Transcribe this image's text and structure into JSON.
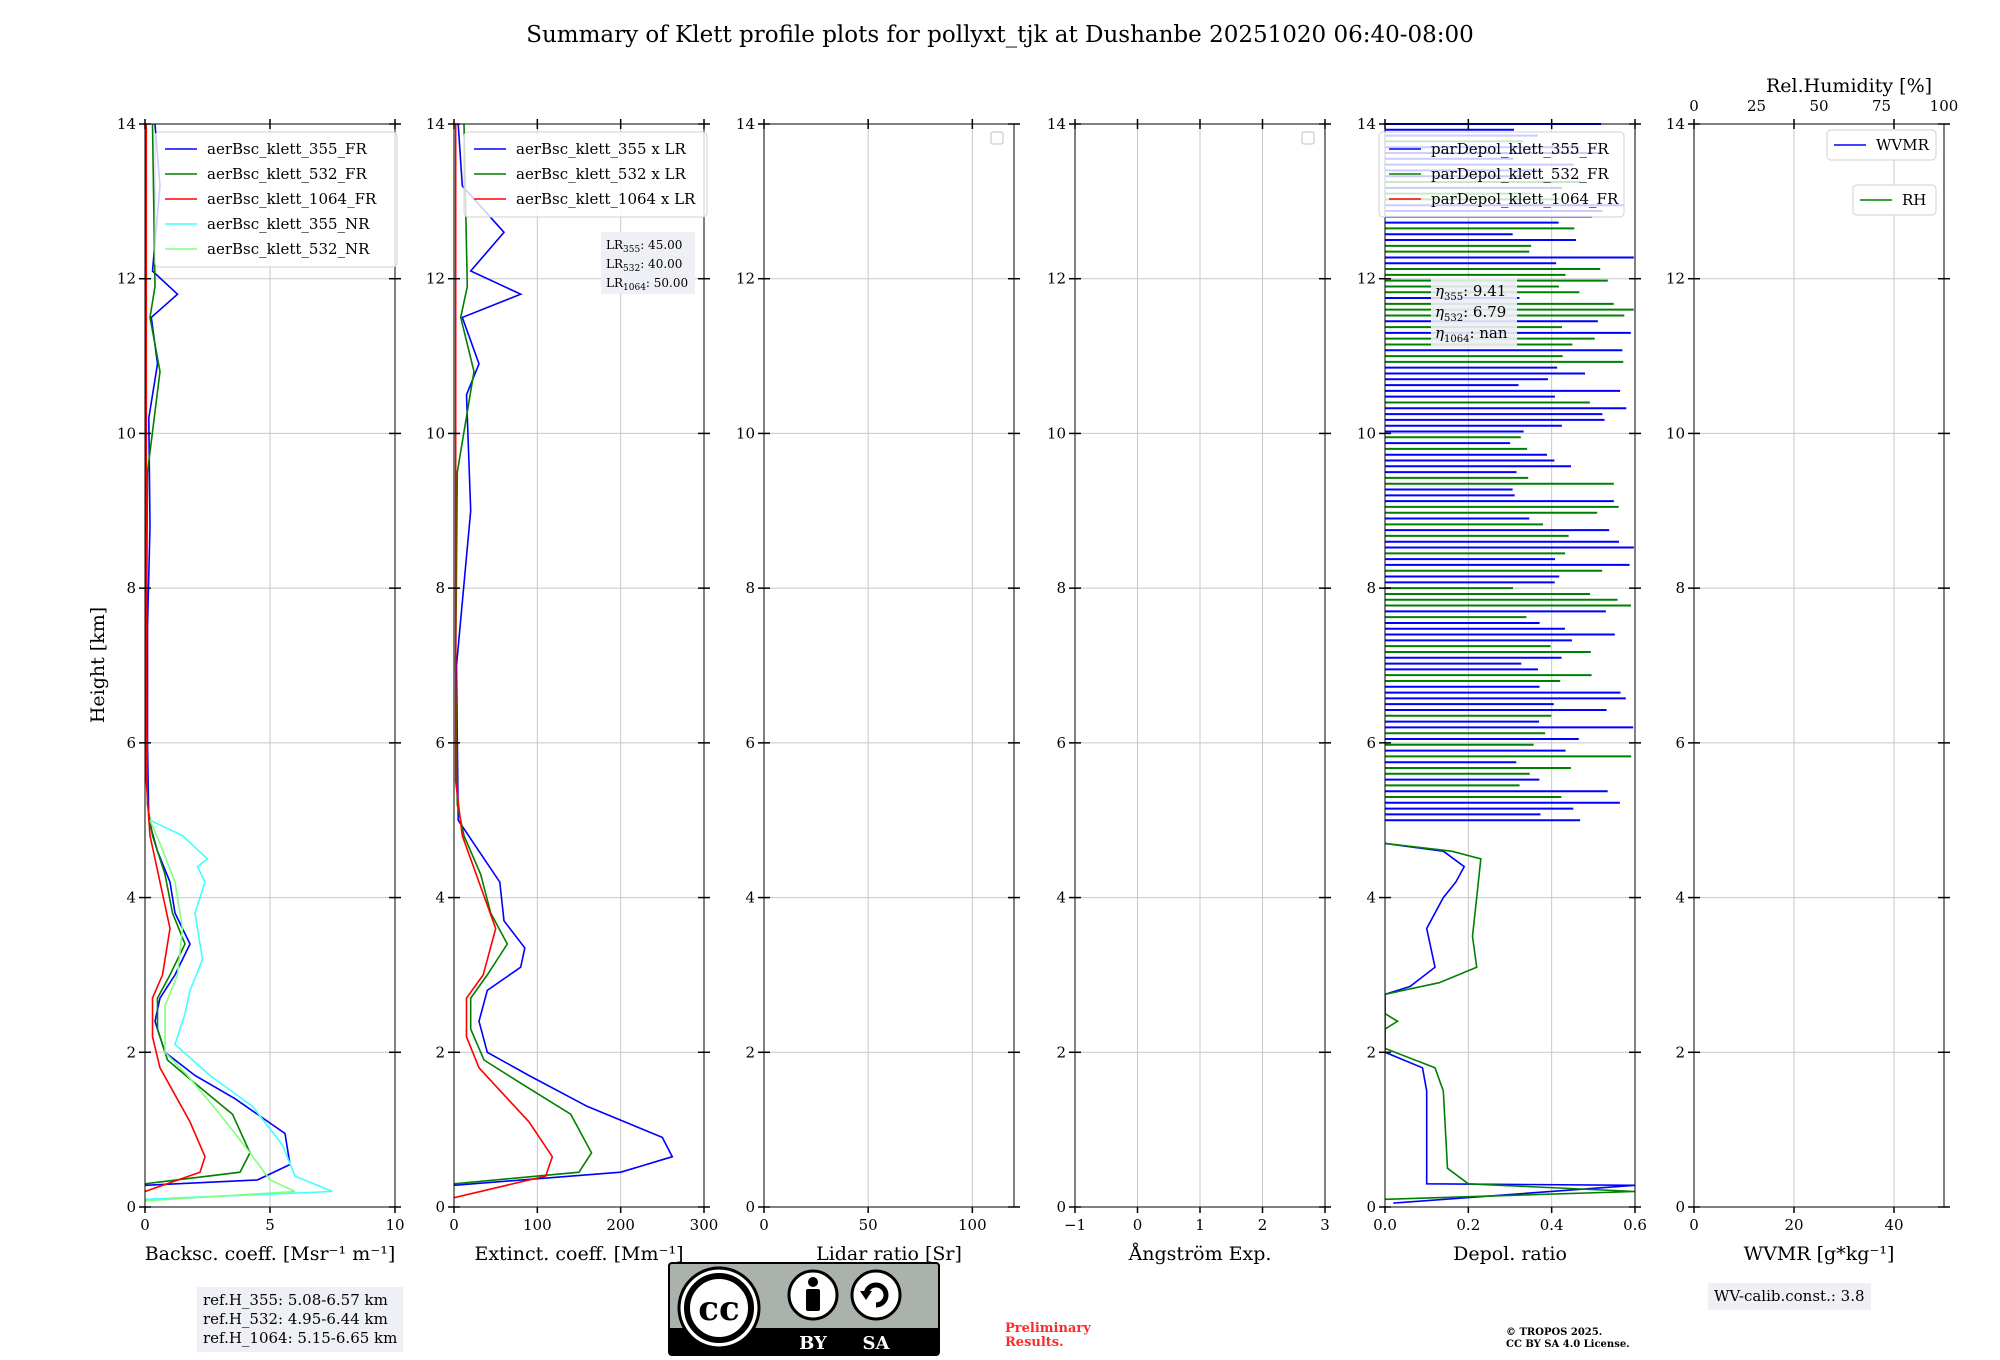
{
  "title": "Summary of Klett profile plots for pollyxt_tjk at Dushanbe 20251020 06:40-08:00",
  "ylabel": "Height [km]",
  "colors": {
    "blue": "#0000ff",
    "green": "#008000",
    "red": "#ff0000",
    "cyan": "#40ffff",
    "lightgreen": "#80ff80",
    "grid": "#c8c8c8"
  },
  "chart_data": [
    {
      "id": "backscatter",
      "type": "line",
      "xlabel": "Backsc. coeff. [Msr⁻¹ m⁻¹]",
      "xlim": [
        0,
        10
      ],
      "ylim": [
        0,
        14
      ],
      "xticks": [
        "0",
        "5",
        "10"
      ],
      "yticks": [
        "0",
        "2",
        "4",
        "6",
        "8",
        "10",
        "12",
        "14"
      ],
      "legend": [
        "aerBsc_klett_355_FR",
        "aerBsc_klett_532_FR",
        "aerBsc_klett_1064_FR",
        "aerBsc_klett_355_NR",
        "aerBsc_klett_532_NR"
      ],
      "series": [
        {
          "name": "aerBsc_klett_355_FR",
          "color": "#0000ff",
          "points": [
            [
              0,
              0.28
            ],
            [
              4.5,
              0.35
            ],
            [
              5.8,
              0.55
            ],
            [
              5.6,
              0.95
            ],
            [
              3.6,
              1.4
            ],
            [
              2.0,
              1.7
            ],
            [
              0.8,
              2.0
            ],
            [
              0.4,
              2.4
            ],
            [
              0.6,
              2.7
            ],
            [
              1.2,
              3.0
            ],
            [
              1.8,
              3.4
            ],
            [
              1.2,
              3.8
            ],
            [
              1.0,
              4.2
            ],
            [
              0.5,
              4.6
            ],
            [
              0.15,
              5.0
            ],
            [
              0.1,
              6.0
            ],
            [
              0.1,
              7.5
            ],
            [
              0.2,
              8.8
            ],
            [
              0.15,
              10.2
            ],
            [
              0.5,
              10.9
            ],
            [
              0.25,
              11.5
            ],
            [
              1.3,
              11.8
            ],
            [
              0.3,
              12.1
            ],
            [
              0.6,
              13.2
            ],
            [
              0.4,
              14.0
            ]
          ]
        },
        {
          "name": "aerBsc_klett_532_FR",
          "color": "#008000",
          "points": [
            [
              0,
              0.3
            ],
            [
              3.8,
              0.45
            ],
            [
              4.2,
              0.7
            ],
            [
              3.5,
              1.2
            ],
            [
              2.0,
              1.6
            ],
            [
              0.9,
              1.9
            ],
            [
              0.5,
              2.3
            ],
            [
              0.5,
              2.7
            ],
            [
              1.0,
              3.0
            ],
            [
              1.6,
              3.4
            ],
            [
              1.1,
              3.8
            ],
            [
              0.8,
              4.3
            ],
            [
              0.3,
              4.8
            ],
            [
              0.1,
              5.2
            ],
            [
              0.05,
              7.0
            ],
            [
              0.1,
              9.5
            ],
            [
              0.6,
              10.8
            ],
            [
              0.2,
              11.5
            ],
            [
              0.4,
              11.9
            ],
            [
              0.3,
              14.0
            ]
          ]
        },
        {
          "name": "aerBsc_klett_1064_FR",
          "color": "#ff0000",
          "points": [
            [
              0,
              0.2
            ],
            [
              2.2,
              0.45
            ],
            [
              2.4,
              0.65
            ],
            [
              1.8,
              1.1
            ],
            [
              0.6,
              1.8
            ],
            [
              0.3,
              2.2
            ],
            [
              0.3,
              2.7
            ],
            [
              0.7,
              3.0
            ],
            [
              1.0,
              3.6
            ],
            [
              0.6,
              4.2
            ],
            [
              0.2,
              4.8
            ],
            [
              0.05,
              5.5
            ],
            [
              0.05,
              14.0
            ]
          ]
        },
        {
          "name": "aerBsc_klett_355_NR",
          "color": "#40ffff",
          "points": [
            [
              0,
              0.1
            ],
            [
              7.5,
              0.2
            ],
            [
              6.0,
              0.4
            ],
            [
              5.5,
              0.8
            ],
            [
              4.3,
              1.3
            ],
            [
              2.6,
              1.7
            ],
            [
              1.2,
              2.1
            ],
            [
              1.6,
              2.5
            ],
            [
              1.8,
              2.8
            ],
            [
              2.3,
              3.2
            ],
            [
              2.0,
              3.8
            ],
            [
              2.4,
              4.2
            ],
            [
              2.1,
              4.4
            ],
            [
              2.5,
              4.5
            ],
            [
              1.5,
              4.8
            ],
            [
              0.2,
              5.0
            ]
          ]
        },
        {
          "name": "aerBsc_klett_532_NR",
          "color": "#80ff80",
          "points": [
            [
              0,
              0.08
            ],
            [
              6.0,
              0.2
            ],
            [
              5.0,
              0.35
            ],
            [
              4.2,
              0.7
            ],
            [
              3.0,
              1.2
            ],
            [
              1.7,
              1.7
            ],
            [
              0.8,
              2.0
            ],
            [
              0.8,
              2.6
            ],
            [
              1.3,
              3.0
            ],
            [
              1.5,
              3.6
            ],
            [
              1.2,
              4.2
            ],
            [
              0.6,
              4.7
            ],
            [
              0.2,
              5.0
            ]
          ]
        }
      ],
      "info": [
        "ref.H_355: 5.08-6.57 km",
        "ref.H_532: 4.95-6.44 km",
        "ref.H_1064: 5.15-6.65 km"
      ]
    },
    {
      "id": "extinction",
      "type": "line",
      "xlabel": "Extinct. coeff. [Mm⁻¹]",
      "xlim": [
        0,
        300
      ],
      "ylim": [
        0,
        14
      ],
      "xticks": [
        "0",
        "100",
        "200",
        "300"
      ],
      "yticks": [
        "0",
        "2",
        "4",
        "6",
        "8",
        "10",
        "12",
        "14"
      ],
      "legend": [
        "aerBsc_klett_355 x LR",
        "aerBsc_klett_532 x LR",
        "aerBsc_klett_1064 x LR"
      ],
      "series": [
        {
          "name": "aerBsc_klett_355 x LR",
          "color": "#0000ff",
          "points": [
            [
              0,
              0.28
            ],
            [
              200,
              0.45
            ],
            [
              262,
              0.65
            ],
            [
              250,
              0.9
            ],
            [
              160,
              1.3
            ],
            [
              90,
              1.7
            ],
            [
              40,
              2.0
            ],
            [
              30,
              2.4
            ],
            [
              40,
              2.8
            ],
            [
              80,
              3.1
            ],
            [
              85,
              3.35
            ],
            [
              60,
              3.7
            ],
            [
              55,
              4.2
            ],
            [
              30,
              4.6
            ],
            [
              5,
              5.0
            ],
            [
              3,
              7.0
            ],
            [
              20,
              9.0
            ],
            [
              15,
              10.5
            ],
            [
              30,
              10.9
            ],
            [
              10,
              11.5
            ],
            [
              80,
              11.8
            ],
            [
              20,
              12.1
            ],
            [
              60,
              12.6
            ],
            [
              10,
              13.2
            ],
            [
              5,
              14.0
            ]
          ]
        },
        {
          "name": "aerBsc_klett_532 x LR",
          "color": "#008000",
          "points": [
            [
              0,
              0.3
            ],
            [
              150,
              0.45
            ],
            [
              165,
              0.7
            ],
            [
              140,
              1.2
            ],
            [
              80,
              1.6
            ],
            [
              36,
              1.9
            ],
            [
              20,
              2.3
            ],
            [
              20,
              2.7
            ],
            [
              40,
              3.0
            ],
            [
              64,
              3.4
            ],
            [
              44,
              3.8
            ],
            [
              32,
              4.3
            ],
            [
              12,
              4.8
            ],
            [
              4,
              5.2
            ],
            [
              2,
              7.0
            ],
            [
              4,
              9.5
            ],
            [
              24,
              10.8
            ],
            [
              8,
              11.5
            ],
            [
              16,
              11.9
            ],
            [
              12,
              14.0
            ]
          ]
        },
        {
          "name": "aerBsc_klett_1064 x LR",
          "color": "#ff0000",
          "points": [
            [
              0,
              0.12
            ],
            [
              110,
              0.4
            ],
            [
              118,
              0.65
            ],
            [
              90,
              1.1
            ],
            [
              30,
              1.8
            ],
            [
              15,
              2.2
            ],
            [
              15,
              2.7
            ],
            [
              35,
              3.0
            ],
            [
              50,
              3.6
            ],
            [
              30,
              4.2
            ],
            [
              10,
              4.8
            ],
            [
              2,
              5.5
            ],
            [
              2,
              14.0
            ]
          ]
        }
      ],
      "info": [
        "LR355: 45.00",
        "LR532: 40.00",
        "LR1064: 50.00"
      ]
    },
    {
      "id": "lidar-ratio",
      "type": "line",
      "xlabel": "Lidar ratio [Sr]",
      "xlim": [
        0,
        120
      ],
      "ylim": [
        0,
        14
      ],
      "xticks": [
        "0",
        "50",
        "100"
      ],
      "yticks": [
        "0",
        "2",
        "4",
        "6",
        "8",
        "10",
        "12",
        "14"
      ],
      "series": []
    },
    {
      "id": "angstrom",
      "type": "line",
      "xlabel": "Ångström Exp.",
      "xlim": [
        -1,
        3
      ],
      "ylim": [
        0,
        14
      ],
      "xticks": [
        "−1",
        "0",
        "1",
        "2",
        "3"
      ],
      "yticks": [
        "0",
        "2",
        "4",
        "6",
        "8",
        "10",
        "12",
        "14"
      ],
      "series": []
    },
    {
      "id": "depol",
      "type": "line",
      "xlabel": "Depol. ratio",
      "xlim": [
        0,
        0.6
      ],
      "ylim": [
        0,
        14
      ],
      "xticks": [
        "0.0",
        "0.2",
        "0.4",
        "0.6"
      ],
      "yticks": [
        "0",
        "2",
        "4",
        "6",
        "8",
        "10",
        "12",
        "14"
      ],
      "legend": [
        "parDepol_klett_355_FR",
        "parDepol_klett_532_FR",
        "parDepol_klett_1064_FR"
      ],
      "series": [
        {
          "name": "parDepol_klett_355_FR",
          "color": "#0000ff",
          "points": [
            [
              0.02,
              0.05
            ],
            [
              0.6,
              0.28
            ],
            [
              0.1,
              0.3
            ],
            [
              0.1,
              1.5
            ],
            [
              0.09,
              1.8
            ],
            [
              0.0,
              2.0
            ],
            [
              0.0,
              2.75
            ],
            [
              0.06,
              2.85
            ],
            [
              0.12,
              3.1
            ],
            [
              0.1,
              3.6
            ],
            [
              0.14,
              4.0
            ],
            [
              0.17,
              4.2
            ],
            [
              0.19,
              4.4
            ],
            [
              0.14,
              4.6
            ],
            [
              0.0,
              4.7
            ]
          ]
        },
        {
          "name": "parDepol_klett_532_FR",
          "color": "#008000",
          "points": [
            [
              0.0,
              0.1
            ],
            [
              0.6,
              0.2
            ],
            [
              0.2,
              0.3
            ],
            [
              0.15,
              0.5
            ],
            [
              0.14,
              1.5
            ],
            [
              0.12,
              1.8
            ],
            [
              0.0,
              2.05
            ],
            [
              0.0,
              2.3
            ],
            [
              0.03,
              2.4
            ],
            [
              0.0,
              2.5
            ],
            [
              0.0,
              2.75
            ],
            [
              0.13,
              2.9
            ],
            [
              0.22,
              3.1
            ],
            [
              0.21,
              3.5
            ],
            [
              0.22,
              4.0
            ],
            [
              0.23,
              4.5
            ],
            [
              0.16,
              4.6
            ],
            [
              0.0,
              4.7
            ]
          ]
        },
        {
          "name": "parDepol_klett_1064_FR",
          "color": "#ff0000",
          "points": []
        }
      ],
      "info": [
        "η355: 9.41",
        "η532: 6.79",
        "η1064: nan"
      ]
    },
    {
      "id": "wvmr",
      "type": "line",
      "xlabel": "WVMR [g*kg⁻¹]",
      "xlim": [
        0,
        50
      ],
      "ylim": [
        0,
        14
      ],
      "xticks": [
        "0",
        "20",
        "40"
      ],
      "yticks": [
        "0",
        "2",
        "4",
        "6",
        "8",
        "10",
        "12",
        "14"
      ],
      "top_axis_label": "Rel.Humidity [%]",
      "top_xticks": [
        "0",
        "25",
        "50",
        "75",
        "100"
      ],
      "legend": [
        "WVMR",
        "RH"
      ],
      "series": [],
      "info": [
        "WV-calib.const.: 3.8"
      ]
    }
  ],
  "footer": {
    "cc_text": "cc",
    "cc_by": "BY",
    "cc_sa": "SA",
    "preliminary_line1": "Preliminary",
    "preliminary_line2": "Results.",
    "copyright_line1": "© TROPOS 2025.",
    "copyright_line2": "CC BY SA 4.0 License."
  }
}
